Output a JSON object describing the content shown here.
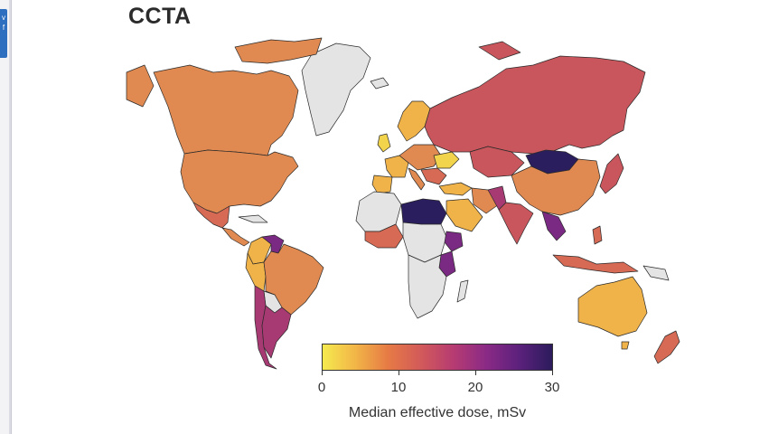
{
  "window": {
    "left_tab_text": "v\nf"
  },
  "panel": {
    "title": "CCTA"
  },
  "legend": {
    "title": "Median effective dose, mSv",
    "min": 0,
    "max": 30,
    "ticks": [
      "0",
      "10",
      "20",
      "30"
    ],
    "gradient_colors": [
      "#f5ea4f",
      "#f2b547",
      "#e67a45",
      "#d25a5a",
      "#b63b72",
      "#8a2a86",
      "#5b217c",
      "#2c1b5c"
    ]
  },
  "map_colors": {
    "no_data": "#e4e4e4",
    "yellow": "#f2d34c",
    "light_orange": "#f0b34a",
    "orange": "#e08a51",
    "salmon": "#d66a55",
    "rose": "#c8565c",
    "magenta": "#a83a73",
    "purple": "#7a2a82",
    "dark_navy": "#2a1e5e"
  }
}
